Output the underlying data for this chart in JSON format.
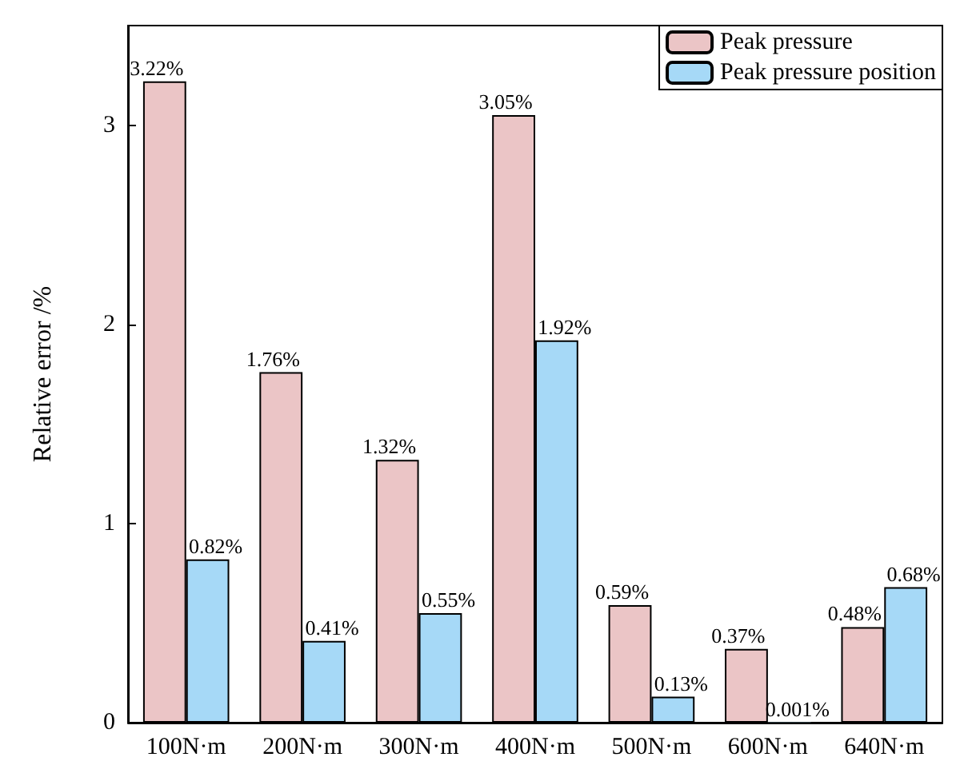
{
  "chart_data": {
    "type": "bar",
    "ylabel": "Relative error /%",
    "categories": [
      "100N·m",
      "200N·m",
      "300N·m",
      "400N·m",
      "500N·m",
      "600N·m",
      "640N·m"
    ],
    "series": [
      {
        "name": "Peak pressure",
        "color": "#ebc5c6",
        "values": [
          3.22,
          1.76,
          1.32,
          3.05,
          0.59,
          0.37,
          0.48
        ],
        "value_labels": [
          "3.22%",
          "1.76%",
          "1.32%",
          "3.05%",
          "0.59%",
          "0.37%",
          "0.48%"
        ]
      },
      {
        "name": "Peak pressure position",
        "color": "#a6d9f7",
        "values": [
          0.82,
          0.41,
          0.55,
          1.92,
          0.13,
          0.001,
          0.68
        ],
        "value_labels": [
          "0.82%",
          "0.41%",
          "0.55%",
          "1.92%",
          "0.13%",
          "0.001%",
          "0.68%"
        ]
      }
    ],
    "ylim": [
      0,
      3.5
    ],
    "yticks": [
      0,
      1,
      2,
      3
    ],
    "grid": false,
    "legend": "top right"
  }
}
